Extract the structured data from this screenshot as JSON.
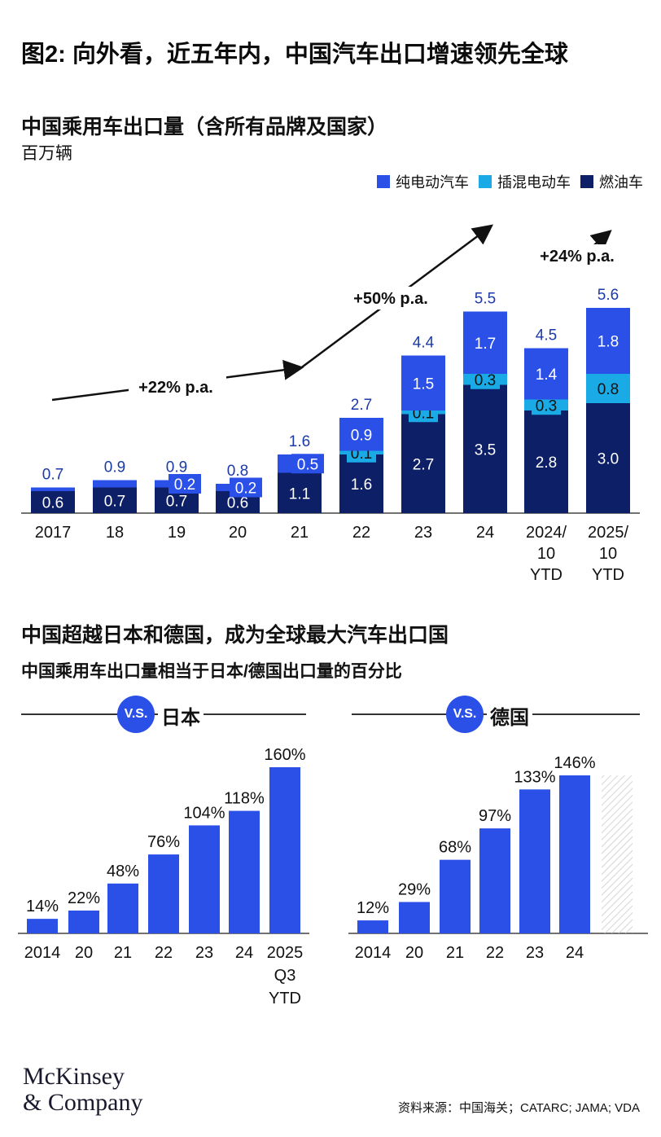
{
  "title": "图2: 向外看，近五年内，中国汽车出口增速领先全球",
  "colors": {
    "bev": "#2b50e8",
    "phev": "#1aaae6",
    "ice": "#0d1f66",
    "bar": "#2b50e8",
    "text": "#111111"
  },
  "chart_data": [
    {
      "type": "bar",
      "stacked": true,
      "title": "中国乘用车出口量（含所有品牌及国家）",
      "ylabel": "百万辆",
      "ylim": [
        0,
        6
      ],
      "categories": [
        "2017",
        "18",
        "19",
        "20",
        "21",
        "22",
        "23",
        "24",
        "2024/\n10\nYTD",
        "2025/\n10\nYTD"
      ],
      "totals": [
        "0.7",
        "0.9",
        "0.9",
        "0.8",
        "1.6",
        "2.7",
        "4.4",
        "5.5",
        "4.5",
        "5.6"
      ],
      "series": [
        {
          "name": "燃油车",
          "values": [
            0.6,
            0.7,
            0.7,
            0.6,
            1.1,
            1.6,
            2.7,
            3.5,
            2.8,
            3.0
          ],
          "labels": [
            "0.6",
            "0.7",
            "0.7",
            "0.6",
            "1.1",
            "1.6",
            "2.7",
            "3.5",
            "2.8",
            "3.0"
          ]
        },
        {
          "name": "插混电动车",
          "values": [
            0,
            0,
            0,
            0,
            0,
            0.1,
            0.1,
            0.3,
            0.3,
            0.8
          ],
          "labels": [
            "",
            "",
            "",
            "",
            "",
            "0.1",
            "0.1",
            "0.3",
            "0.3",
            "0.8"
          ]
        },
        {
          "name": "纯电动汽车",
          "values": [
            0.1,
            0.2,
            0.2,
            0.2,
            0.5,
            0.9,
            1.5,
            1.7,
            1.4,
            1.8
          ],
          "labels": [
            "",
            "",
            "0.2",
            "0.2",
            "0.5",
            "0.9",
            "1.5",
            "1.7",
            "1.4",
            "1.8"
          ]
        }
      ],
      "legend": [
        "纯电动汽车",
        "插混电动车",
        "燃油车"
      ],
      "annotations": [
        "+22% p.a.",
        "+50% p.a.",
        "+24% p.a."
      ]
    },
    {
      "type": "bar",
      "title": "V.S.日本",
      "categories": [
        "2014",
        "20",
        "21",
        "22",
        "23",
        "24",
        "2025\nQ3\nYTD"
      ],
      "values": [
        14,
        22,
        48,
        76,
        104,
        118,
        160
      ],
      "labels": [
        "14%",
        "22%",
        "48%",
        "76%",
        "104%",
        "118%",
        "160%"
      ],
      "ylim": [
        0,
        160
      ]
    },
    {
      "type": "bar",
      "title": "V.S.德国",
      "categories": [
        "2014",
        "20",
        "21",
        "22",
        "23",
        "24"
      ],
      "values": [
        12,
        29,
        68,
        97,
        133,
        146
      ],
      "labels": [
        "12%",
        "29%",
        "68%",
        "97%",
        "133%",
        "146%"
      ],
      "ylim": [
        0,
        146
      ]
    }
  ],
  "section2": {
    "title": "中国超越日本和德国，成为全球最大汽车出口国",
    "subtitle": "中国乘用车出口量相当于日本/德国出口量的百分比",
    "vs_text": "V.S.",
    "japan_label": "日本",
    "germany_label": "德国"
  },
  "logo": {
    "line1": "McKinsey",
    "line2": "& Company"
  },
  "source": "资料来源：中国海关；CATARC; JAMA; VDA"
}
